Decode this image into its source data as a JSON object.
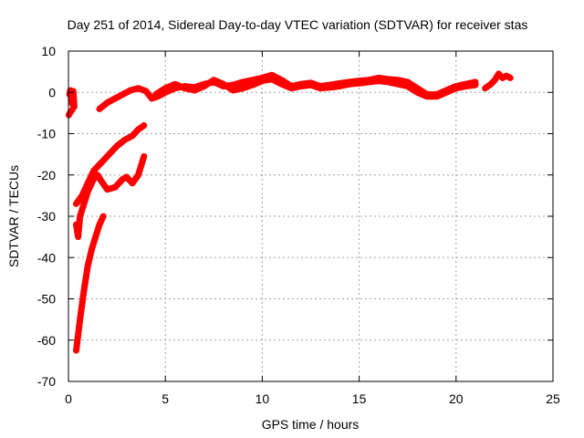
{
  "chart_data": {
    "type": "scatter",
    "title": "Day 251 of 2014, Sidereal Day-to-day VTEC variation (SDTVAR) for receiver stas",
    "xlabel": "GPS time / hours",
    "ylabel": "SDTVAR / TECUs",
    "xlim": [
      0,
      25
    ],
    "ylim": [
      -70,
      10
    ],
    "xticks": [
      0,
      5,
      10,
      15,
      20,
      25
    ],
    "yticks": [
      -70,
      -60,
      -50,
      -40,
      -30,
      -20,
      -10,
      0,
      10
    ],
    "grid": true,
    "legend": "none",
    "color": "#ff0000",
    "series": [
      {
        "name": "arc-1",
        "points": [
          [
            0.05,
            -0.5
          ],
          [
            0.1,
            0.5
          ],
          [
            0.15,
            -1.5
          ],
          [
            0.2,
            -2.8
          ],
          [
            0.25,
            0.3
          ],
          [
            0.3,
            -3.5
          ]
        ]
      },
      {
        "name": "arc-2",
        "points": [
          [
            0.02,
            -5.5
          ],
          [
            0.1,
            -4.8
          ],
          [
            0.2,
            -4.2
          ]
        ]
      },
      {
        "name": "arc-3",
        "points": [
          [
            0.4,
            -62.5
          ],
          [
            0.6,
            -55
          ],
          [
            0.8,
            -48
          ],
          [
            1.0,
            -42
          ],
          [
            1.2,
            -38
          ],
          [
            1.4,
            -35
          ],
          [
            1.6,
            -32
          ],
          [
            1.8,
            -30
          ]
        ]
      },
      {
        "name": "arc-4",
        "points": [
          [
            0.4,
            -32
          ],
          [
            0.5,
            -35
          ],
          [
            0.6,
            -30
          ],
          [
            0.8,
            -27
          ],
          [
            1.0,
            -24
          ],
          [
            1.3,
            -21
          ],
          [
            1.5,
            -20
          ],
          [
            1.7,
            -21.5
          ],
          [
            2.0,
            -23.5
          ],
          [
            2.4,
            -23
          ],
          [
            2.8,
            -21
          ],
          [
            3.0,
            -20.5
          ],
          [
            3.3,
            -22
          ],
          [
            3.6,
            -20
          ],
          [
            3.9,
            -15.5
          ]
        ]
      },
      {
        "name": "arc-5",
        "points": [
          [
            0.4,
            -27
          ],
          [
            0.7,
            -25
          ],
          [
            1.0,
            -22
          ],
          [
            1.3,
            -19
          ],
          [
            1.7,
            -17
          ],
          [
            2.1,
            -15
          ],
          [
            2.5,
            -13
          ],
          [
            2.9,
            -11.5
          ],
          [
            3.3,
            -10.5
          ],
          [
            3.6,
            -9
          ],
          [
            3.9,
            -8
          ]
        ]
      },
      {
        "name": "arc-6",
        "points": [
          [
            1.6,
            -4
          ],
          [
            2.0,
            -2.5
          ],
          [
            2.4,
            -1.5
          ],
          [
            2.8,
            -0.5
          ],
          [
            3.2,
            0.5
          ],
          [
            3.6,
            1
          ],
          [
            4.0,
            0.3
          ],
          [
            4.3,
            -1.5
          ],
          [
            4.6,
            -1
          ],
          [
            5.0,
            0
          ],
          [
            5.5,
            1
          ],
          [
            6.0,
            1.5
          ],
          [
            6.5,
            1.2
          ],
          [
            7.0,
            2
          ],
          [
            7.5,
            2.5
          ],
          [
            8.0,
            1.5
          ],
          [
            8.5,
            1.8
          ],
          [
            9.0,
            2.5
          ],
          [
            9.5,
            3
          ],
          [
            10.0,
            3.5
          ],
          [
            10.5,
            4.2
          ],
          [
            11.0,
            3
          ],
          [
            11.5,
            1.5
          ],
          [
            12.0,
            2
          ],
          [
            12.5,
            2.3
          ],
          [
            13.0,
            1.5
          ],
          [
            13.5,
            1.8
          ],
          [
            14.0,
            2.2
          ],
          [
            14.5,
            2.5
          ],
          [
            15.0,
            2.8
          ],
          [
            15.5,
            3
          ],
          [
            16.0,
            3.5
          ],
          [
            16.5,
            3.2
          ],
          [
            17.0,
            3
          ],
          [
            17.5,
            2.5
          ],
          [
            18.0,
            1
          ],
          [
            18.5,
            -0.5
          ],
          [
            19.0,
            -0.5
          ],
          [
            19.5,
            0.5
          ],
          [
            20.0,
            1.5
          ],
          [
            20.5,
            2
          ],
          [
            21.0,
            2.5
          ]
        ]
      },
      {
        "name": "arc-7",
        "points": [
          [
            4.5,
            -0.5
          ],
          [
            5.0,
            1
          ],
          [
            5.5,
            2
          ],
          [
            6.0,
            1
          ],
          [
            6.5,
            0.5
          ],
          [
            7.0,
            1.5
          ],
          [
            7.5,
            3
          ],
          [
            8.0,
            2
          ],
          [
            8.5,
            0.5
          ],
          [
            9.0,
            1
          ],
          [
            9.5,
            1.8
          ],
          [
            10.0,
            2.8
          ],
          [
            10.5,
            3.2
          ],
          [
            11.0,
            2
          ],
          [
            11.5,
            1
          ],
          [
            12.0,
            1.5
          ],
          [
            12.5,
            1.8
          ],
          [
            13.0,
            1
          ],
          [
            13.5,
            1.2
          ],
          [
            14.0,
            1.5
          ],
          [
            14.5,
            2
          ],
          [
            15.0,
            2.2
          ],
          [
            15.5,
            2.5
          ],
          [
            16.0,
            2.8
          ],
          [
            16.5,
            2.5
          ],
          [
            17.0,
            2
          ],
          [
            17.5,
            1.5
          ],
          [
            18.0,
            0
          ],
          [
            18.5,
            -1
          ],
          [
            19.0,
            -1
          ],
          [
            19.5,
            0
          ],
          [
            20.0,
            1
          ],
          [
            20.5,
            1.5
          ],
          [
            21.0,
            1.8
          ]
        ]
      },
      {
        "name": "arc-8",
        "points": [
          [
            21.5,
            1
          ],
          [
            21.8,
            2
          ],
          [
            22.0,
            3
          ],
          [
            22.2,
            4.5
          ],
          [
            22.4,
            3.5
          ],
          [
            22.6,
            4
          ],
          [
            22.8,
            3.5
          ]
        ]
      }
    ]
  }
}
